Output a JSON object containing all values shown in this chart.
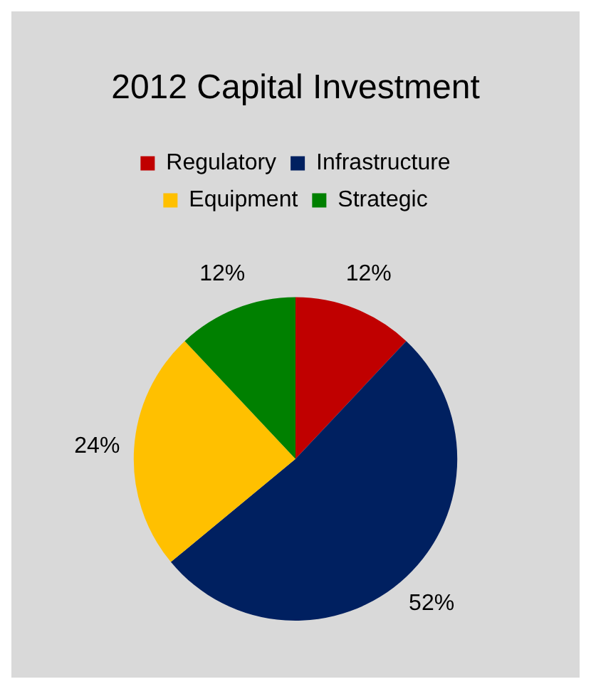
{
  "chart_data": {
    "type": "pie",
    "title": "2012 Capital Investment",
    "categories": [
      "Regulatory",
      "Infrastructure",
      "Equipment",
      "Strategic"
    ],
    "values": [
      12,
      52,
      24,
      12
    ],
    "colors": [
      "#c00000",
      "#002060",
      "#ffc000",
      "#008000"
    ],
    "value_labels": [
      "12%",
      "52%",
      "24%",
      "12%"
    ],
    "legend": "top"
  }
}
